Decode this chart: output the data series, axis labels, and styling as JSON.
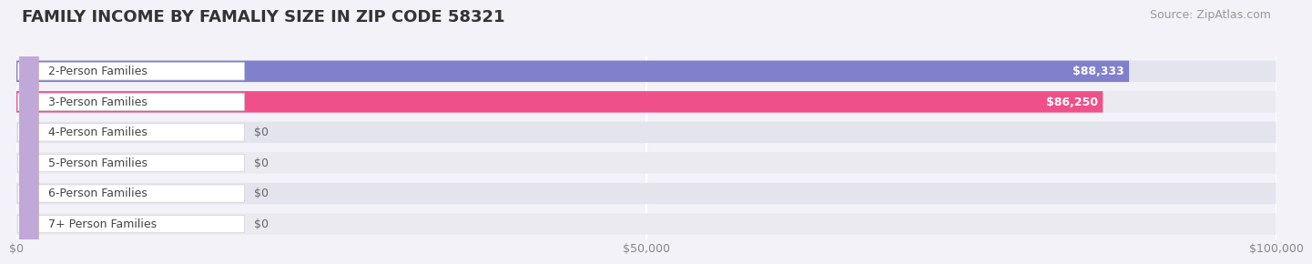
{
  "title": "FAMILY INCOME BY FAMALIY SIZE IN ZIP CODE 58321",
  "source": "Source: ZipAtlas.com",
  "categories": [
    "2-Person Families",
    "3-Person Families",
    "4-Person Families",
    "5-Person Families",
    "6-Person Families",
    "7+ Person Families"
  ],
  "values": [
    88333,
    86250,
    0,
    0,
    0,
    0
  ],
  "bar_colors": [
    "#8080cc",
    "#f0508a",
    "#f5c48a",
    "#f0a8a0",
    "#a8c4e0",
    "#c0a8d8"
  ],
  "value_labels": [
    "$88,333",
    "$86,250",
    "$0",
    "$0",
    "$0",
    "$0"
  ],
  "xlim": [
    0,
    100000
  ],
  "xticks": [
    0,
    50000,
    100000
  ],
  "xticklabels": [
    "$0",
    "$50,000",
    "$100,000"
  ],
  "background_color": "#f2f2f8",
  "bar_bg_color": "#e4e4ee",
  "bar_bg_color_alt": "#eaeaf0",
  "grid_color": "#ffffff",
  "title_fontsize": 13,
  "source_fontsize": 9,
  "label_fontsize": 9,
  "value_fontsize": 9
}
